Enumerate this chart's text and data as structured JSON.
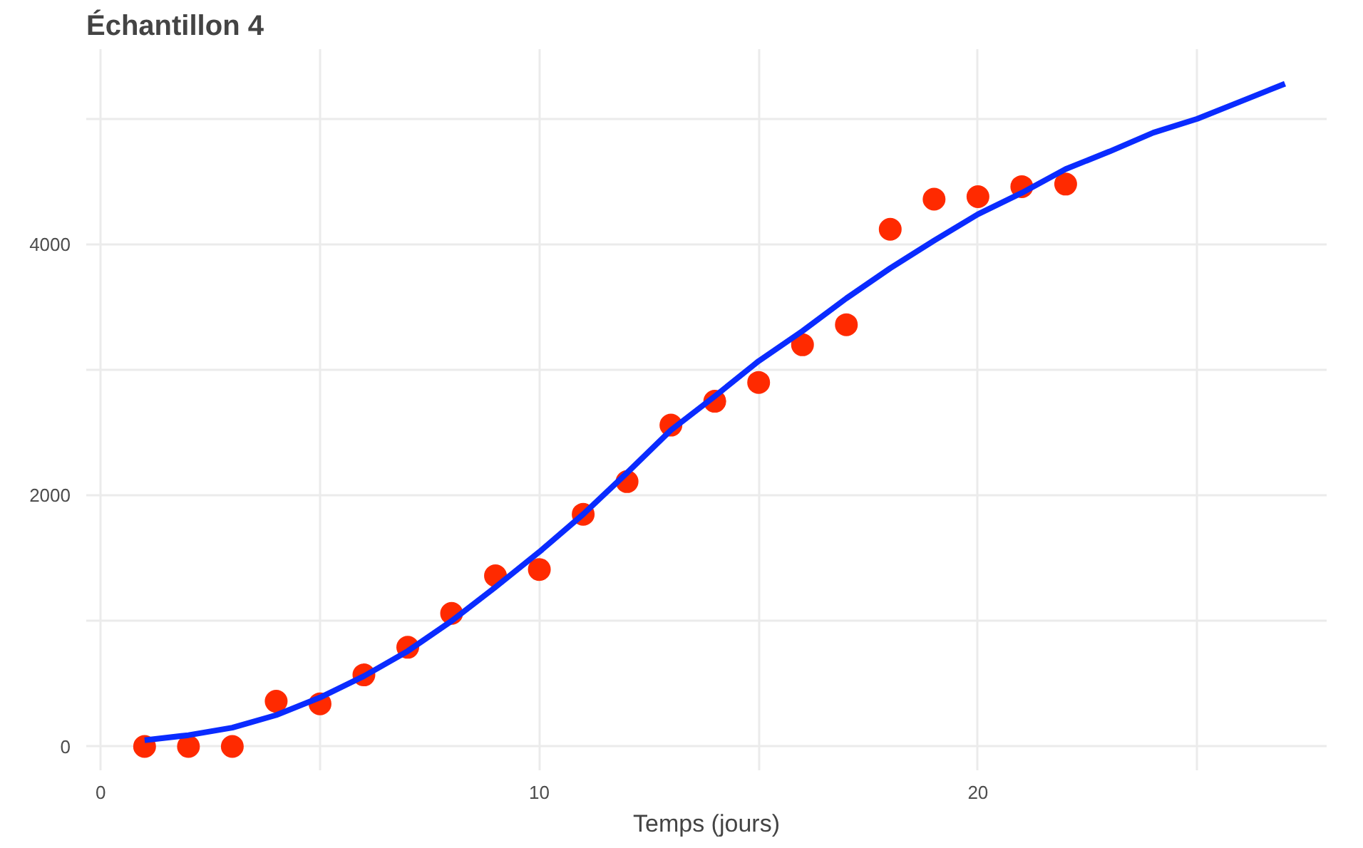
{
  "chart_data": {
    "type": "scatter",
    "title": "Échantillon 4",
    "xlabel": "Temps (jours)",
    "xlim": [
      -0.33,
      27.95
    ],
    "ylim": [
      -190,
      5555
    ],
    "xticks": [
      0,
      {
        "value": 5,
        "label": null
      },
      10,
      {
        "value": 15,
        "label": null
      },
      20,
      {
        "value": 25,
        "label": null
      }
    ],
    "yticks": [
      0,
      {
        "value": 1000,
        "label": null
      },
      2000,
      {
        "value": 3000,
        "label": null
      },
      4000,
      {
        "value": 5000,
        "label": null
      }
    ],
    "grid": true,
    "series": [
      {
        "type": "scatter",
        "color": "#ff2a00",
        "marker": "circle",
        "x": [
          1,
          2,
          3,
          4,
          5,
          6,
          7,
          8,
          9,
          10,
          11,
          12,
          13,
          14,
          15,
          16,
          17,
          18,
          19,
          20,
          21,
          22
        ],
        "values": [
          0,
          0,
          0,
          360,
          340,
          570,
          790,
          1060,
          1360,
          1410,
          1850,
          2110,
          2560,
          2750,
          2900,
          3200,
          3360,
          4120,
          4360,
          4380,
          4460,
          4480
        ]
      },
      {
        "type": "line",
        "color": "#0a2bff",
        "marker": "none",
        "line_style": "solid",
        "x": [
          1,
          2,
          3,
          4,
          5,
          6,
          7,
          8,
          9,
          10,
          11,
          12,
          13,
          14,
          15,
          16,
          17,
          18,
          19,
          20,
          21,
          22,
          23,
          24,
          25,
          26,
          27
        ],
        "values": [
          50,
          90,
          150,
          250,
          390,
          560,
          760,
          1000,
          1270,
          1550,
          1850,
          2180,
          2520,
          2790,
          3070,
          3310,
          3570,
          3810,
          4030,
          4240,
          4410,
          4600,
          4740,
          4890,
          5000,
          5140,
          5280
        ]
      }
    ]
  }
}
